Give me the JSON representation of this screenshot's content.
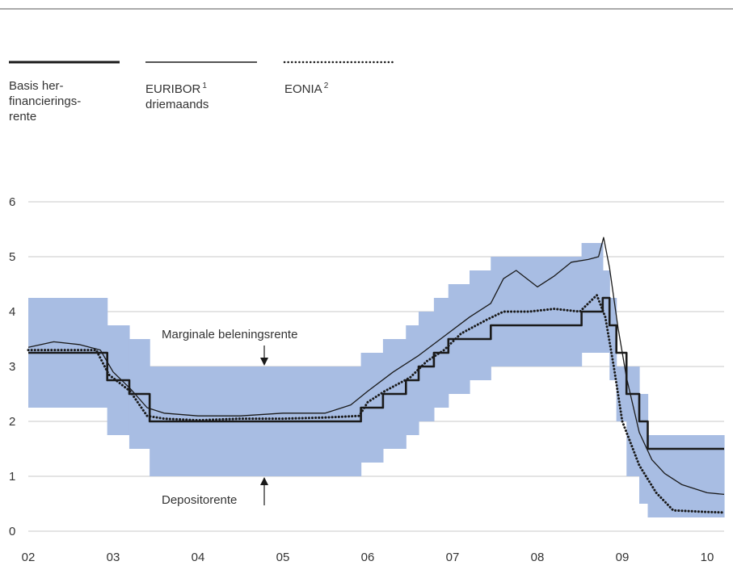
{
  "legend": [
    {
      "label": "Basis her-\nfinancierings-\nrente",
      "sup": "",
      "style": "thick"
    },
    {
      "label": "EURIBOR",
      "label2": "driemaands",
      "sup": "1",
      "style": "thin"
    },
    {
      "label": "EONIA",
      "sup": "2",
      "style": "dotted"
    }
  ],
  "annotations": {
    "marginal": "Marginale beleningsrente",
    "deposit": "Depositorente"
  },
  "colors": {
    "band": "#a8bde3",
    "line": "#1a1a1a",
    "grid": "#c8c8c8"
  },
  "chart_data": {
    "type": "line",
    "xlabel": "",
    "ylabel": "",
    "ylim": [
      0,
      6
    ],
    "xlim": [
      2002.0,
      2010.2
    ],
    "yticks": [
      "0",
      "1",
      "2",
      "3",
      "4",
      "5",
      "6"
    ],
    "xticks": [
      "02",
      "03",
      "04",
      "05",
      "06",
      "07",
      "08",
      "09",
      "10"
    ],
    "grid": true,
    "corridor": [
      [
        2002.0,
        2.25,
        4.25
      ],
      [
        2002.93,
        1.75,
        3.75
      ],
      [
        2003.19,
        1.5,
        3.5
      ],
      [
        2003.43,
        1.0,
        3.0
      ],
      [
        2005.92,
        1.25,
        3.25
      ],
      [
        2006.18,
        1.5,
        3.5
      ],
      [
        2006.45,
        1.75,
        3.75
      ],
      [
        2006.6,
        2.0,
        4.0
      ],
      [
        2006.78,
        2.25,
        4.25
      ],
      [
        2006.95,
        2.5,
        4.5
      ],
      [
        2007.2,
        2.75,
        4.75
      ],
      [
        2007.45,
        3.0,
        5.0
      ],
      [
        2008.52,
        3.25,
        5.25
      ],
      [
        2008.77,
        3.25,
        4.75
      ],
      [
        2008.85,
        2.75,
        4.25
      ],
      [
        2008.93,
        2.0,
        3.0
      ],
      [
        2009.05,
        1.0,
        3.0
      ],
      [
        2009.2,
        0.5,
        2.5
      ],
      [
        2009.3,
        0.25,
        1.75
      ],
      [
        2010.2,
        0.25,
        1.75
      ]
    ],
    "series": [
      {
        "name": "Basis herfinancieringsrente",
        "style": "thick",
        "x": [
          2002.0,
          2002.93,
          2002.93,
          2003.19,
          2003.19,
          2003.43,
          2003.43,
          2005.92,
          2005.92,
          2006.18,
          2006.18,
          2006.45,
          2006.45,
          2006.6,
          2006.6,
          2006.78,
          2006.78,
          2006.95,
          2006.95,
          2007.45,
          2007.45,
          2008.52,
          2008.52,
          2008.77,
          2008.77,
          2008.85,
          2008.85,
          2008.93,
          2008.93,
          2009.05,
          2009.05,
          2009.2,
          2009.2,
          2009.3,
          2009.3,
          2010.2
        ],
        "y": [
          3.25,
          3.25,
          2.75,
          2.75,
          2.5,
          2.5,
          2.0,
          2.0,
          2.25,
          2.25,
          2.5,
          2.5,
          2.75,
          2.75,
          3.0,
          3.0,
          3.25,
          3.25,
          3.5,
          3.5,
          3.75,
          3.75,
          4.0,
          4.0,
          4.25,
          4.25,
          3.75,
          3.75,
          3.25,
          3.25,
          2.5,
          2.5,
          2.0,
          2.0,
          1.5,
          1.5
        ]
      },
      {
        "name": "EURIBOR driemaands",
        "style": "thin",
        "x": [
          2002.0,
          2002.3,
          2002.6,
          2002.85,
          2003.0,
          2003.2,
          2003.4,
          2003.6,
          2004.0,
          2004.5,
          2005.0,
          2005.5,
          2005.8,
          2006.0,
          2006.3,
          2006.6,
          2006.9,
          2007.2,
          2007.45,
          2007.6,
          2007.75,
          2008.0,
          2008.2,
          2008.4,
          2008.6,
          2008.72,
          2008.78,
          2008.85,
          2008.95,
          2009.05,
          2009.2,
          2009.35,
          2009.5,
          2009.7,
          2010.0,
          2010.2
        ],
        "y": [
          3.35,
          3.45,
          3.4,
          3.3,
          2.9,
          2.6,
          2.25,
          2.15,
          2.1,
          2.1,
          2.15,
          2.15,
          2.3,
          2.55,
          2.9,
          3.2,
          3.55,
          3.9,
          4.15,
          4.6,
          4.75,
          4.45,
          4.65,
          4.9,
          4.95,
          5.0,
          5.35,
          4.8,
          3.7,
          2.8,
          1.8,
          1.3,
          1.05,
          0.85,
          0.7,
          0.67
        ]
      },
      {
        "name": "EONIA",
        "style": "dotted",
        "x": [
          2002.0,
          2002.4,
          2002.8,
          2002.95,
          2003.2,
          2003.4,
          2003.6,
          2004.0,
          2004.5,
          2005.0,
          2005.5,
          2005.9,
          2006.0,
          2006.2,
          2006.5,
          2006.7,
          2006.9,
          2007.1,
          2007.4,
          2007.6,
          2007.9,
          2008.2,
          2008.5,
          2008.7,
          2008.8,
          2008.9,
          2009.0,
          2009.2,
          2009.4,
          2009.6,
          2010.0,
          2010.2
        ],
        "y": [
          3.3,
          3.3,
          3.3,
          2.85,
          2.55,
          2.1,
          2.05,
          2.02,
          2.05,
          2.05,
          2.07,
          2.1,
          2.35,
          2.55,
          2.8,
          3.1,
          3.3,
          3.6,
          3.85,
          4.0,
          4.0,
          4.05,
          4.0,
          4.3,
          3.9,
          3.0,
          2.0,
          1.2,
          0.7,
          0.38,
          0.35,
          0.34
        ]
      }
    ]
  }
}
